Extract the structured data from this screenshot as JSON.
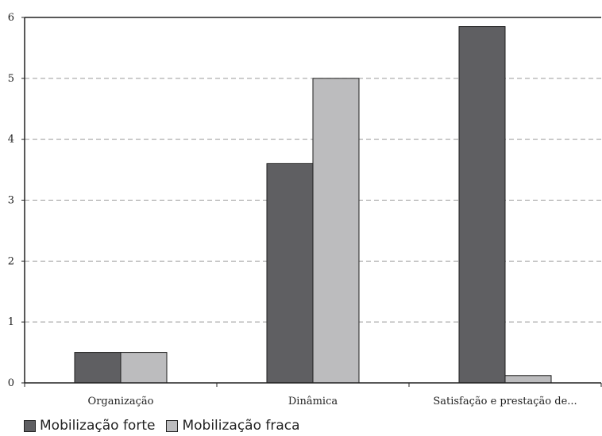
{
  "chart_data": {
    "type": "bar",
    "categories": [
      "Organização",
      "Dinâmica",
      "Satisfação e prestação de..."
    ],
    "series": [
      {
        "name": "Mobilização forte",
        "values": [
          0.5,
          3.6,
          5.85
        ],
        "color": "#5f5f62"
      },
      {
        "name": "Mobilização fraca",
        "values": [
          0.5,
          5.0,
          0.12
        ],
        "color": "#bcbcbe"
      }
    ],
    "y_ticks": [
      "0",
      "1",
      "2",
      "3",
      "4",
      "5",
      "6"
    ],
    "ylim": [
      0,
      6
    ],
    "grid": "horizontal-dashed",
    "legend_position": "bottom-left"
  }
}
